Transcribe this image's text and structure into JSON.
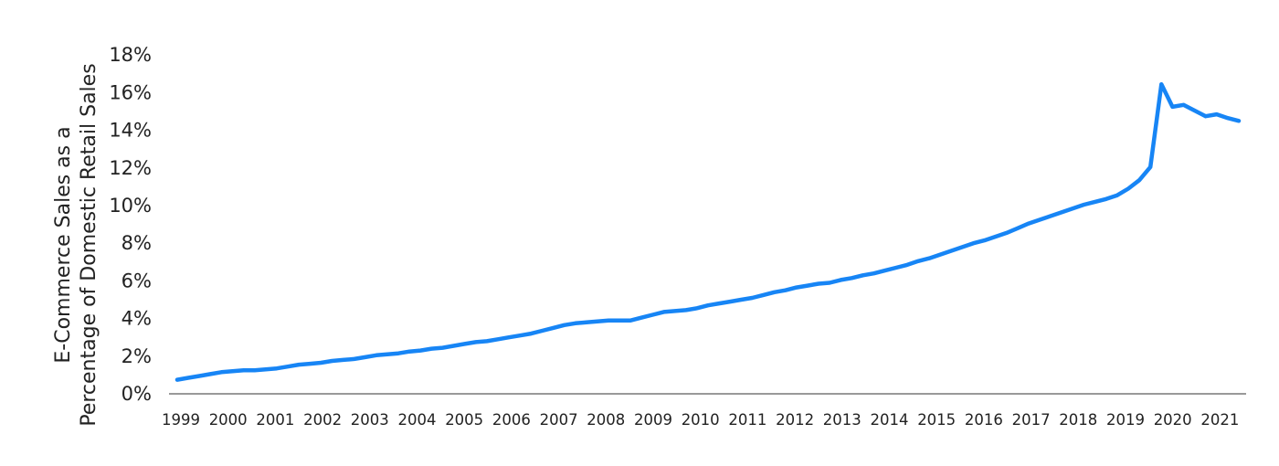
{
  "chart_data": {
    "type": "line",
    "title": "",
    "xlabel": "",
    "ylabel_lines": [
      "E-Commerce Sales as a",
      "Percentage of Domestic Retail Sales"
    ],
    "ylim": [
      0,
      18
    ],
    "yticks": [
      0,
      2,
      4,
      6,
      8,
      10,
      12,
      14,
      16,
      18
    ],
    "ytick_labels": [
      "0%",
      "2%",
      "4%",
      "6%",
      "8%",
      "10%",
      "12%",
      "14%",
      "16%",
      "18%"
    ],
    "xtick_labels": [
      "1999",
      "2000",
      "2001",
      "2002",
      "2003",
      "2004",
      "2005",
      "2006",
      "2007",
      "2008",
      "2009",
      "2010",
      "2011",
      "2012",
      "2013",
      "2014",
      "2015",
      "2016",
      "2017",
      "2018",
      "2019",
      "2020",
      "2021"
    ],
    "grid": false,
    "line_color": "#1785f5",
    "axis_color": "#999999",
    "series": [
      {
        "values": [
          0.7,
          0.8,
          0.9,
          1.0,
          1.1,
          1.15,
          1.2,
          1.2,
          1.25,
          1.3,
          1.4,
          1.5,
          1.55,
          1.6,
          1.7,
          1.75,
          1.8,
          1.9,
          2.0,
          2.05,
          2.1,
          2.2,
          2.25,
          2.35,
          2.4,
          2.5,
          2.6,
          2.7,
          2.75,
          2.85,
          2.95,
          3.05,
          3.15,
          3.3,
          3.45,
          3.6,
          3.7,
          3.75,
          3.8,
          3.85,
          3.85,
          3.85,
          4.0,
          4.15,
          4.3,
          4.35,
          4.4,
          4.5,
          4.65,
          4.75,
          4.85,
          4.95,
          5.05,
          5.2,
          5.35,
          5.45,
          5.6,
          5.7,
          5.8,
          5.85,
          6.0,
          6.1,
          6.25,
          6.35,
          6.5,
          6.65,
          6.8,
          7.0,
          7.15,
          7.35,
          7.55,
          7.75,
          7.95,
          8.1,
          8.3,
          8.5,
          8.75,
          9.0,
          9.2,
          9.4,
          9.6,
          9.8,
          10.0,
          10.15,
          10.3,
          10.5,
          10.85,
          11.3,
          12.0,
          16.4,
          15.2,
          15.3,
          15.0,
          14.7,
          14.8,
          14.6,
          14.45
        ]
      }
    ]
  }
}
